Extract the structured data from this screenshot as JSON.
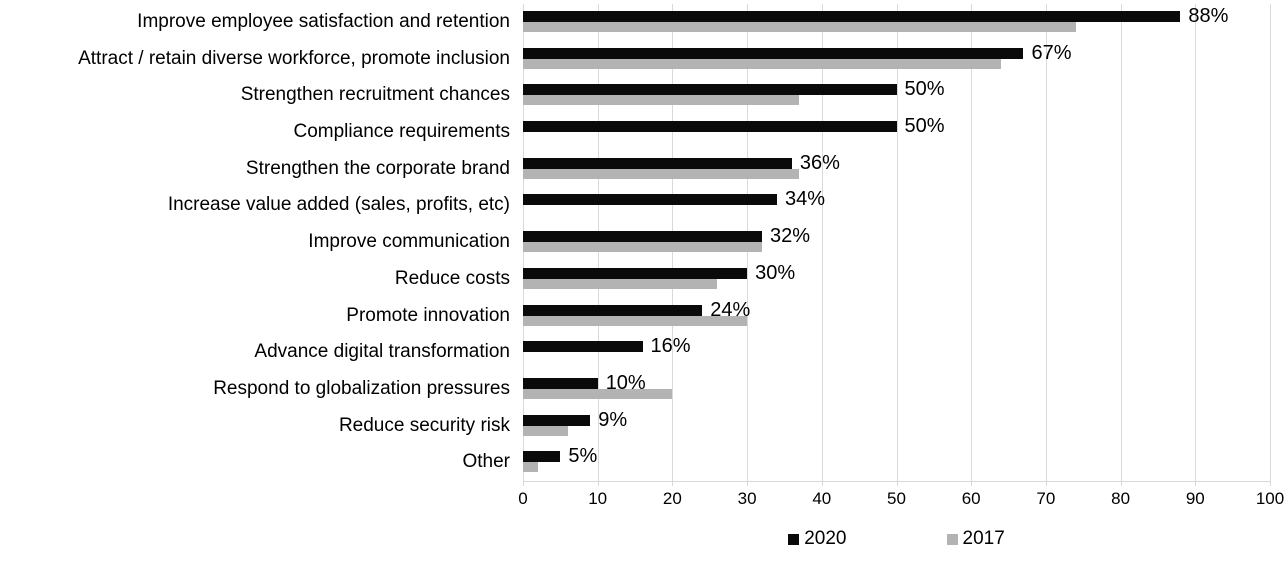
{
  "chart_data": {
    "type": "bar",
    "orientation": "horizontal",
    "title": "",
    "categories": [
      "Improve employee satisfaction and retention",
      "Attract / retain diverse workforce, promote inclusion",
      "Strengthen recruitment chances",
      "Compliance requirements",
      "Strengthen the corporate brand",
      "Increase value added (sales, profits, etc)",
      "Improve communication",
      "Reduce costs",
      "Promote innovation",
      "Advance digital transformation",
      "Respond to globalization pressures",
      "Reduce security risk",
      "Other"
    ],
    "series": [
      {
        "name": "2020",
        "color": "#0a0a0a",
        "values": [
          88,
          67,
          50,
          50,
          36,
          34,
          32,
          30,
          24,
          16,
          10,
          9,
          5
        ],
        "data_labels": [
          "88%",
          "67%",
          "50%",
          "50%",
          "36%",
          "34%",
          "32%",
          "30%",
          "24%",
          "16%",
          "10%",
          "9%",
          "5%"
        ]
      },
      {
        "name": "2017",
        "color": "#b3b3b3",
        "values": [
          74,
          64,
          37,
          null,
          37,
          null,
          32,
          26,
          30,
          null,
          20,
          6,
          2
        ],
        "data_labels": []
      }
    ],
    "xlim": [
      0,
      100
    ],
    "x_ticks": [
      "0",
      "10",
      "20",
      "30",
      "40",
      "50",
      "60",
      "70",
      "80",
      "90",
      "100"
    ],
    "grid": true,
    "gridline_color": "#d9d9d9",
    "legend_position": "bottom"
  }
}
